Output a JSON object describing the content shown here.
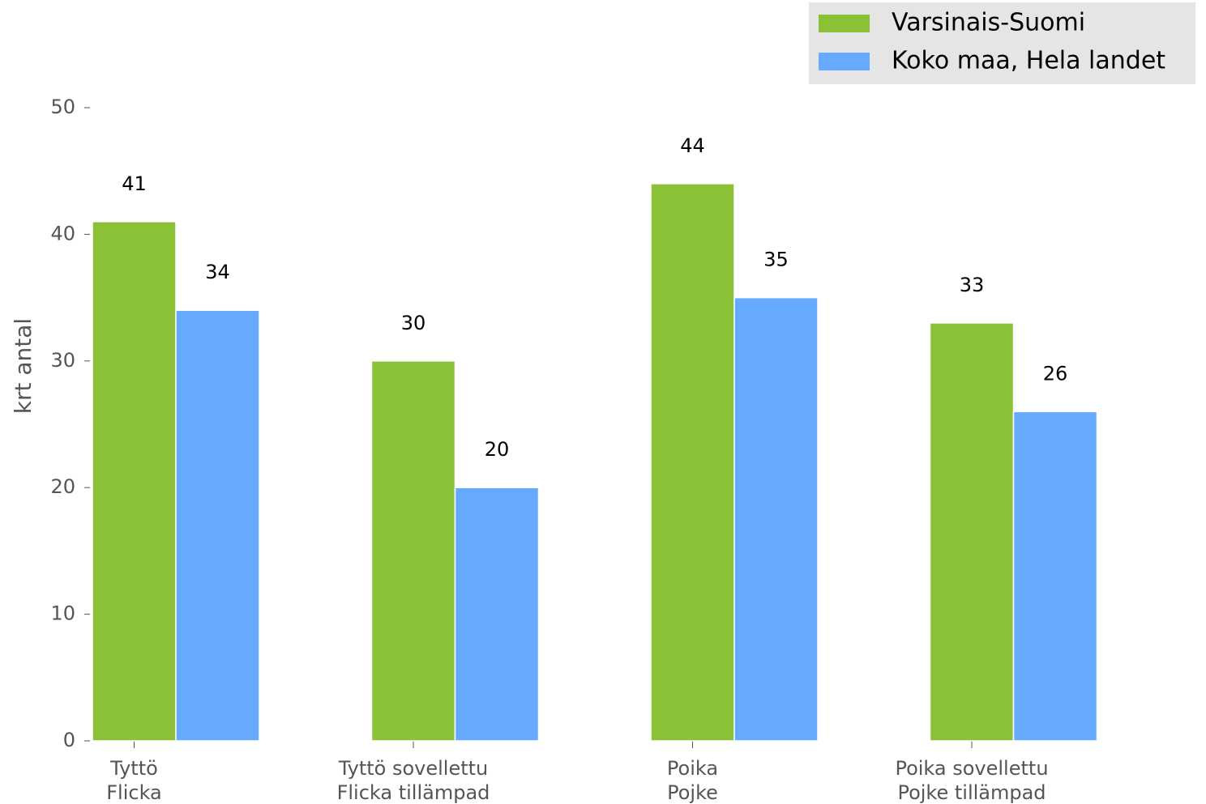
{
  "chart_data": {
    "type": "bar",
    "y_label": "krt antal",
    "categories": [
      "Tyttö\nFlicka",
      "Tyttö sovellettu\nFlicka tillämpad",
      "Poika\nPojke",
      "Poika sovellettu\nPojke tillämpad"
    ],
    "series": [
      {
        "name": "Varsinais-Suomi",
        "color": "#8bc137",
        "values": [
          41,
          30,
          44,
          33
        ]
      },
      {
        "name": "Koko maa, Hela landet",
        "color": "#66aaff",
        "values": [
          34,
          20,
          35,
          26
        ]
      }
    ],
    "ylim": [
      0,
      50
    ],
    "yticks": [
      0,
      10,
      20,
      30,
      40,
      50
    ],
    "legend": "upper right"
  }
}
